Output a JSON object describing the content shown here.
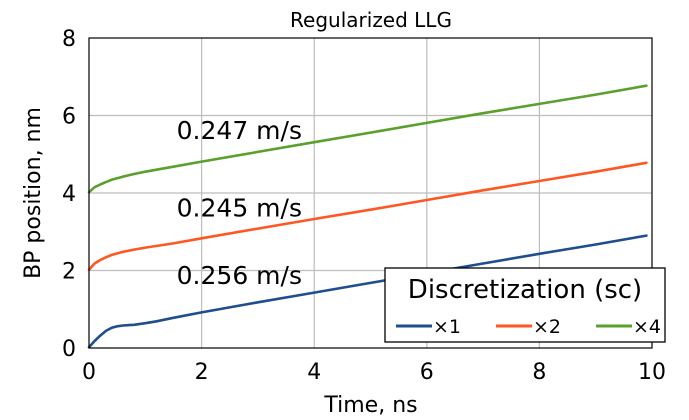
{
  "chart_data": {
    "type": "line",
    "title": "Regularized LLG",
    "xlabel": "Time, ns",
    "ylabel": "BP position, nm",
    "xlim": [
      0,
      10
    ],
    "ylim": [
      0,
      8
    ],
    "xticks": [
      0,
      2,
      4,
      6,
      8,
      10
    ],
    "yticks": [
      0,
      2,
      4,
      6,
      8
    ],
    "grid": true,
    "legend": {
      "title": "Discretization (sc)",
      "placement": "bottom-right",
      "orientation": "horizontal"
    },
    "annotations": [
      {
        "text": "0.247 m/s",
        "x": 0.9,
        "y": 5.4
      },
      {
        "text": "0.245 m/s",
        "x": 0.9,
        "y": 3.4
      },
      {
        "text": "0.256 m/s",
        "x": 0.9,
        "y": 1.65
      }
    ],
    "series": [
      {
        "name": "×1",
        "color": "#1f4e8c",
        "x": [
          0,
          0.1,
          0.2,
          0.3,
          0.4,
          0.5,
          0.6,
          0.8,
          1.0,
          1.2,
          1.5,
          2,
          3,
          4,
          5,
          6,
          7,
          8,
          9,
          9.9
        ],
        "y": [
          0.02,
          0.18,
          0.32,
          0.44,
          0.52,
          0.56,
          0.58,
          0.6,
          0.64,
          0.69,
          0.78,
          0.92,
          1.18,
          1.43,
          1.68,
          1.93,
          2.18,
          2.43,
          2.67,
          2.9
        ]
      },
      {
        "name": "×2",
        "color": "#ff5722",
        "x": [
          0,
          0.1,
          0.2,
          0.3,
          0.4,
          0.5,
          0.6,
          0.8,
          1.0,
          1.5,
          2,
          3,
          4,
          5,
          6,
          7,
          8,
          9,
          9.9
        ],
        "y": [
          2.02,
          2.18,
          2.27,
          2.34,
          2.4,
          2.44,
          2.48,
          2.54,
          2.59,
          2.7,
          2.83,
          3.08,
          3.33,
          3.57,
          3.82,
          4.07,
          4.31,
          4.55,
          4.78
        ]
      },
      {
        "name": "×4",
        "color": "#5aa02c",
        "x": [
          0,
          0.1,
          0.2,
          0.3,
          0.4,
          0.5,
          0.6,
          0.8,
          1.0,
          1.5,
          2,
          3,
          4,
          5,
          6,
          7,
          8,
          9,
          9.9
        ],
        "y": [
          4.02,
          4.15,
          4.22,
          4.28,
          4.34,
          4.38,
          4.42,
          4.49,
          4.55,
          4.68,
          4.81,
          5.06,
          5.31,
          5.56,
          5.81,
          6.06,
          6.3,
          6.54,
          6.77
        ]
      }
    ]
  }
}
